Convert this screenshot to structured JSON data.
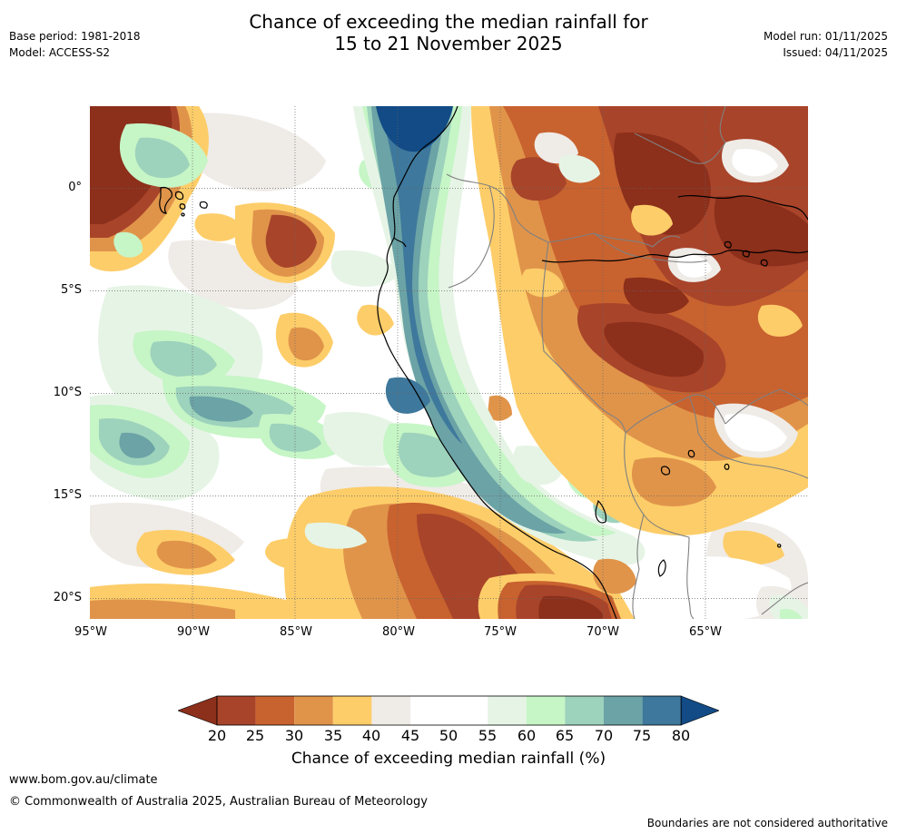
{
  "header": {
    "title_line1": "Chance of exceeding the median rainfall for",
    "title_line2": "15 to 21 November 2025",
    "base_period": "Base period: 1981-2018",
    "model": "Model: ACCESS-S2",
    "model_run": "Model run: 01/11/2025",
    "issued": "Issued: 04/11/2025"
  },
  "map": {
    "lat_labels": [
      "0°",
      "5°S",
      "10°S",
      "15°S",
      "20°S"
    ],
    "lon_labels": [
      "95°W",
      "90°W",
      "85°W",
      "80°W",
      "75°W",
      "70°W",
      "65°W"
    ],
    "colors": {
      "c15": "#8c2f1b",
      "c20": "#a8442a",
      "c25": "#c8622f",
      "c30": "#e0944a",
      "c35": "#fdcd69",
      "c40": "#efebe7",
      "c45": "#ffffff",
      "c50": "#ffffff",
      "c55": "#e6f4e6",
      "c60": "#c6f5c6",
      "c65": "#9dd2bc",
      "c70": "#6ba3a6",
      "c75": "#3e789c",
      "c80": "#124b86",
      "coast": "#000000",
      "border": "#808080"
    }
  },
  "colorbar": {
    "ticks": [
      "20",
      "25",
      "30",
      "35",
      "40",
      "45",
      "50",
      "55",
      "60",
      "65",
      "70",
      "75",
      "80"
    ],
    "title": "Chance of exceeding median rainfall (%)"
  },
  "footer": {
    "url": "www.bom.gov.au/climate",
    "copyright": "© Commonwealth of Australia 2025, Australian Bureau of Meteorology",
    "disclaimer": "Boundaries are not considered authoritative"
  }
}
